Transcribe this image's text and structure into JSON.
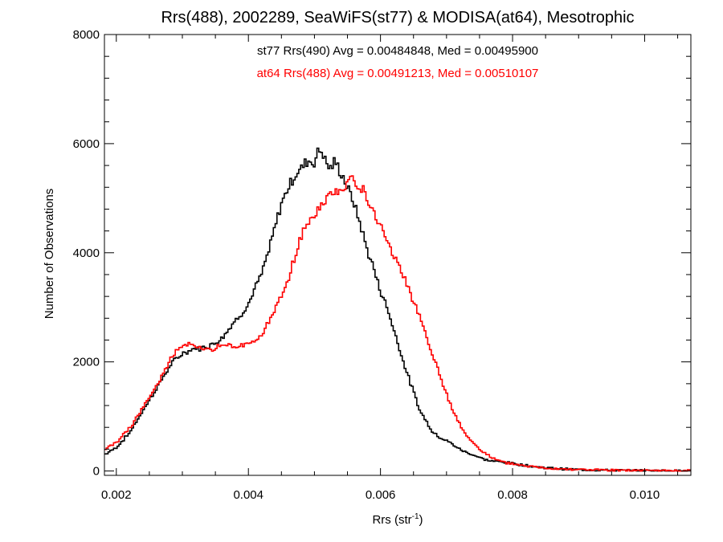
{
  "chart_data": {
    "type": "line",
    "title": "Rrs(488), 2002289, SeaWiFS(st77) & MODISA(at64), Mesotrophic",
    "xlabel": "Rrs (str",
    "xlabel_sup": "-1",
    "xlabel_end": ")",
    "ylabel": "Number of Observations",
    "xlim": [
      0.00182,
      0.0107
    ],
    "ylim": [
      -80,
      8000
    ],
    "xticks": [
      0.002,
      0.004,
      0.006,
      0.008,
      0.01
    ],
    "xtick_labels": [
      "0.002",
      "0.004",
      "0.006",
      "0.008",
      "0.010"
    ],
    "yticks": [
      0,
      2000,
      4000,
      6000,
      8000
    ],
    "ytick_labels": [
      "0",
      "2000",
      "4000",
      "6000",
      "8000"
    ],
    "grid": false,
    "legend": "top-center",
    "annotations": [
      {
        "text": "st77 Rrs(490) Avg = 0.00484848, Med = 0.00495900",
        "color": "#000000"
      },
      {
        "text": "at64 Rrs(488) Avg = 0.00491213, Med = 0.00510107",
        "color": "#ff0000"
      }
    ],
    "series": [
      {
        "color": "#000000",
        "x": [
          0.00182,
          0.002,
          0.0022,
          0.0024,
          0.0026,
          0.0028,
          0.0029,
          0.003,
          0.0031,
          0.0032,
          0.0033,
          0.0034,
          0.0035,
          0.0036,
          0.0037,
          0.0038,
          0.0039,
          0.004,
          0.0041,
          0.0042,
          0.0043,
          0.0044,
          0.0045,
          0.0046,
          0.0047,
          0.0048,
          0.0049,
          0.005,
          0.00505,
          0.0051,
          0.00515,
          0.0052,
          0.00525,
          0.0053,
          0.00535,
          0.0054,
          0.00545,
          0.0055,
          0.0056,
          0.0057,
          0.0058,
          0.0059,
          0.006,
          0.0061,
          0.0062,
          0.0063,
          0.0064,
          0.0065,
          0.0066,
          0.0067,
          0.0068,
          0.0069,
          0.007,
          0.0071,
          0.0072,
          0.0073,
          0.0074,
          0.0075,
          0.0076,
          0.0077,
          0.0078,
          0.0079,
          0.008,
          0.0082,
          0.0084,
          0.0086,
          0.0088,
          0.009,
          0.0092,
          0.0095,
          0.0098,
          0.0101,
          0.0104,
          0.0107
        ],
        "values": [
          300,
          430,
          700,
          1100,
          1500,
          1900,
          2050,
          2150,
          2200,
          2250,
          2250,
          2300,
          2350,
          2450,
          2600,
          2750,
          2900,
          3050,
          3350,
          3600,
          4000,
          4450,
          4900,
          5200,
          5400,
          5550,
          5700,
          5650,
          5850,
          5900,
          5750,
          5600,
          5550,
          5650,
          5600,
          5450,
          5350,
          5200,
          4900,
          4500,
          4050,
          3700,
          3300,
          3000,
          2600,
          2200,
          1800,
          1450,
          1100,
          900,
          700,
          620,
          560,
          480,
          400,
          340,
          300,
          250,
          200,
          180,
          170,
          160,
          140,
          100,
          70,
          50,
          35,
          25,
          20,
          12,
          8,
          5,
          3,
          2
        ]
      },
      {
        "color": "#ff0000",
        "x": [
          0.00182,
          0.002,
          0.0022,
          0.0024,
          0.0026,
          0.0028,
          0.0029,
          0.003,
          0.0031,
          0.0032,
          0.0033,
          0.0034,
          0.0035,
          0.0036,
          0.0037,
          0.0038,
          0.0039,
          0.004,
          0.0041,
          0.0042,
          0.0043,
          0.0044,
          0.0045,
          0.0046,
          0.0047,
          0.0048,
          0.0049,
          0.005,
          0.0051,
          0.0052,
          0.0053,
          0.0054,
          0.0055,
          0.0056,
          0.0057,
          0.0058,
          0.0059,
          0.006,
          0.0061,
          0.0062,
          0.0063,
          0.0064,
          0.0065,
          0.0066,
          0.0067,
          0.0068,
          0.0069,
          0.007,
          0.0071,
          0.0072,
          0.0073,
          0.0074,
          0.0075,
          0.0076,
          0.0077,
          0.0078,
          0.0079,
          0.008,
          0.0082,
          0.0084,
          0.0086,
          0.0088,
          0.009,
          0.0092,
          0.0095,
          0.0098,
          0.0101,
          0.0104,
          0.0107
        ],
        "values": [
          400,
          520,
          780,
          1150,
          1550,
          2000,
          2200,
          2300,
          2350,
          2300,
          2250,
          2200,
          2250,
          2300,
          2300,
          2250,
          2300,
          2350,
          2400,
          2500,
          2700,
          2950,
          3200,
          3500,
          3900,
          4300,
          4550,
          4700,
          4850,
          5000,
          5100,
          5200,
          5300,
          5350,
          5200,
          5000,
          4700,
          4500,
          4250,
          3950,
          3700,
          3400,
          3100,
          2800,
          2450,
          2100,
          1750,
          1400,
          1100,
          850,
          650,
          520,
          400,
          320,
          230,
          180,
          150,
          130,
          90,
          65,
          45,
          35,
          25,
          20,
          12,
          8,
          5,
          3,
          2
        ]
      }
    ]
  }
}
